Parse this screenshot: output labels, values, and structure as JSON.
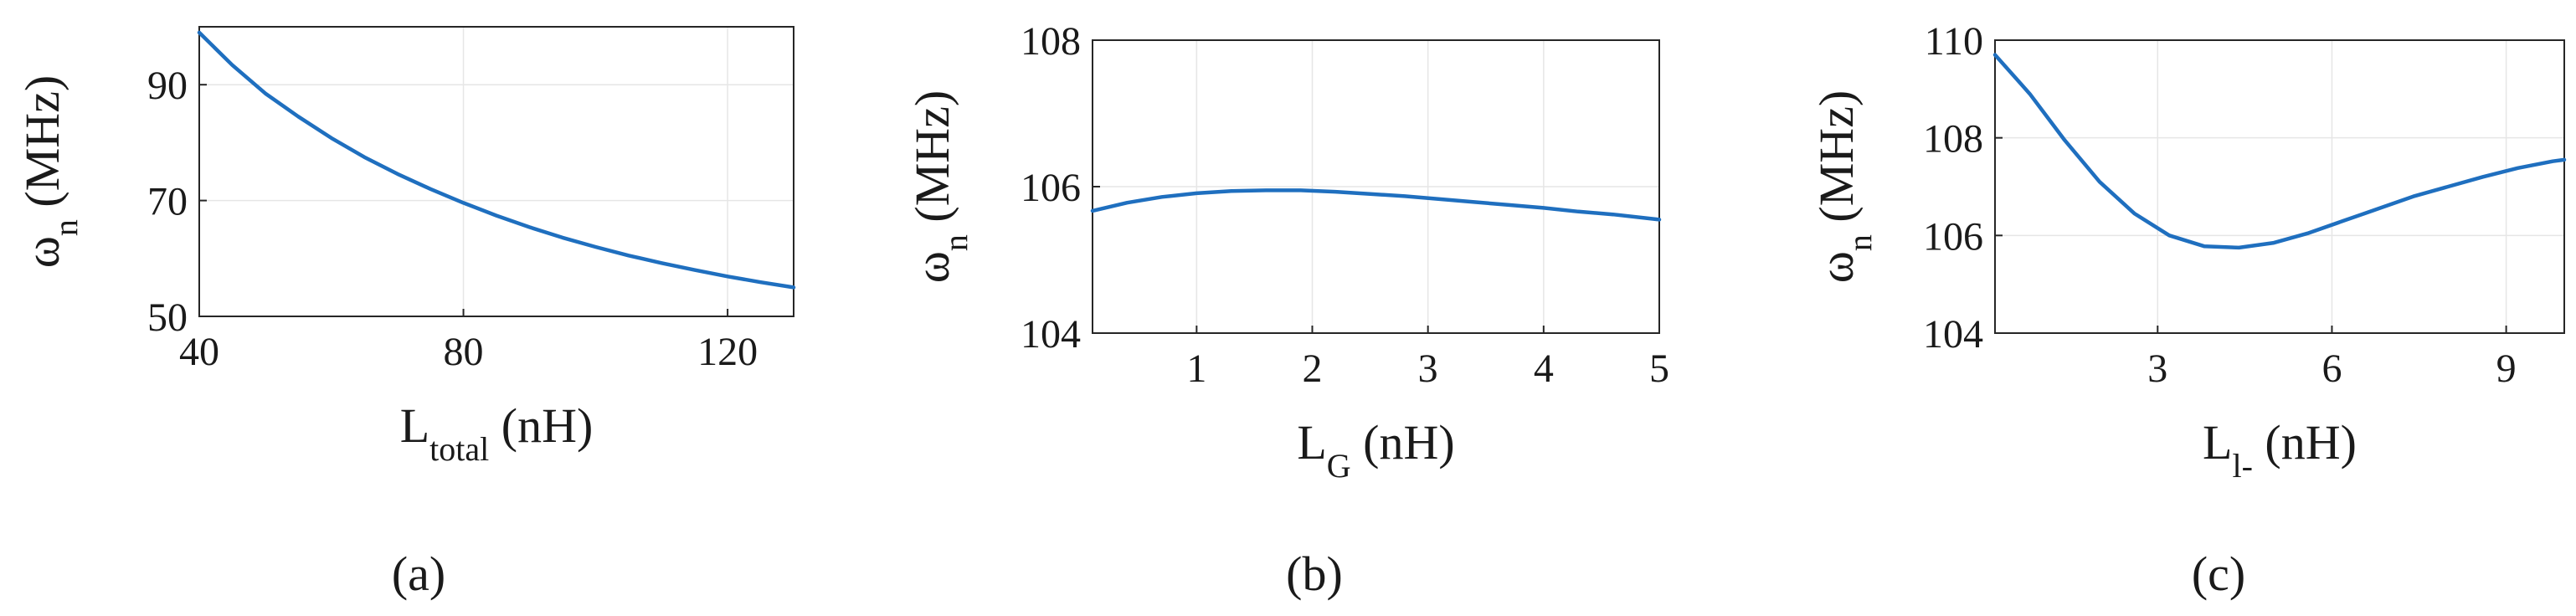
{
  "chart_data": [
    {
      "type": "line",
      "panel_label": "(a)",
      "xlabel": {
        "main": "L",
        "sub": "total",
        "unit": " (nH)"
      },
      "ylabel": {
        "main": "ω",
        "sub": "n",
        "unit": " (MHz)"
      },
      "xlim": [
        40,
        130
      ],
      "ylim": [
        50,
        100
      ],
      "xticks": [
        40,
        80,
        120
      ],
      "yticks": [
        50,
        70,
        90
      ],
      "xtick_labels": [
        "40",
        "80",
        "120"
      ],
      "ytick_labels": [
        "50",
        "70",
        "90"
      ],
      "grid": true,
      "color": "#1f6fbf",
      "series": [
        {
          "x": [
            40,
            45,
            50,
            55,
            60,
            65,
            70,
            75,
            80,
            85,
            90,
            95,
            100,
            105,
            110,
            115,
            120,
            125,
            130
          ],
          "y": [
            99,
            93.4,
            88.5,
            84.5,
            80.8,
            77.5,
            74.6,
            72,
            69.6,
            67.4,
            65.4,
            63.6,
            62,
            60.5,
            59.2,
            58,
            56.9,
            55.9,
            55
          ]
        }
      ]
    },
    {
      "type": "line",
      "panel_label": "(b)",
      "xlabel": {
        "main": "L",
        "sub": "G",
        "unit": " (nH)"
      },
      "ylabel": {
        "main": "ω",
        "sub": "n",
        "unit": " (MHz)"
      },
      "xlim": [
        0.1,
        5
      ],
      "ylim": [
        104,
        108
      ],
      "xticks": [
        1,
        2,
        3,
        4,
        5
      ],
      "yticks": [
        104,
        106,
        108
      ],
      "xtick_labels": [
        "1",
        "2",
        "3",
        "4",
        "5"
      ],
      "ytick_labels": [
        "104",
        "106",
        "108"
      ],
      "grid": true,
      "color": "#1f6fbf",
      "series": [
        {
          "x": [
            0.1,
            0.4,
            0.7,
            1.0,
            1.3,
            1.6,
            1.9,
            2.2,
            2.5,
            2.8,
            3.1,
            3.4,
            3.7,
            4.0,
            4.3,
            4.6,
            5.0
          ],
          "y": [
            105.67,
            105.78,
            105.86,
            105.91,
            105.94,
            105.95,
            105.95,
            105.93,
            105.9,
            105.87,
            105.83,
            105.79,
            105.75,
            105.71,
            105.66,
            105.62,
            105.55
          ]
        }
      ]
    },
    {
      "type": "line",
      "panel_label": "(c)",
      "xlabel": {
        "main": "L",
        "sub": "l-",
        "unit": " (nH)"
      },
      "ylabel": {
        "main": "ω",
        "sub": "n",
        "unit": " (MHz)"
      },
      "xlim": [
        0.2,
        10
      ],
      "ylim": [
        104,
        110
      ],
      "xticks": [
        3,
        6,
        9
      ],
      "yticks": [
        104,
        106,
        108,
        110
      ],
      "xtick_labels": [
        "3",
        "6",
        "9"
      ],
      "ytick_labels": [
        "104",
        "106",
        "108",
        "110"
      ],
      "grid": true,
      "color": "#1f6fbf",
      "series": [
        {
          "x": [
            0.2,
            0.8,
            1.4,
            2.0,
            2.6,
            3.2,
            3.8,
            4.4,
            5.0,
            5.6,
            6.2,
            6.8,
            7.4,
            8.0,
            8.6,
            9.2,
            9.8,
            10.0
          ],
          "y": [
            109.7,
            108.9,
            107.95,
            107.1,
            106.45,
            106.0,
            105.78,
            105.75,
            105.85,
            106.05,
            106.3,
            106.55,
            106.8,
            107.0,
            107.2,
            107.38,
            107.52,
            107.55
          ]
        }
      ]
    }
  ]
}
